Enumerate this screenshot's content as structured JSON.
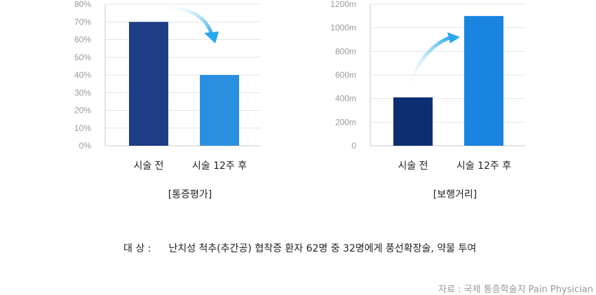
{
  "chart_data": [
    {
      "type": "bar",
      "title": "[통증평가]",
      "categories": [
        "시술 전",
        "시술 12주 후"
      ],
      "values": [
        70,
        40
      ],
      "yticks": [
        "0%",
        "10%",
        "20%",
        "30%",
        "40%",
        "50%",
        "60%",
        "70%",
        "80%"
      ],
      "ylim": [
        0,
        80
      ],
      "colors": [
        "#1f3d85",
        "#2b8fe0"
      ],
      "arrow": "down",
      "grid": true
    },
    {
      "type": "bar",
      "title": "[보행거리]",
      "categories": [
        "시술 전",
        "시술 12주 후"
      ],
      "values": [
        410,
        1100
      ],
      "yticks": [
        "0",
        "200m",
        "400m",
        "600m",
        "800m",
        "1000m",
        "1200m"
      ],
      "ylim": [
        0,
        1200
      ],
      "colors": [
        "#0c2f73",
        "#1985e0"
      ],
      "arrow": "up",
      "grid": true
    }
  ],
  "footnote": {
    "label": "대 상 :",
    "text": "난치성 척추(추간공) 협착증 환자 62명 중 32명에게 풍선확장술, 약물 투여"
  },
  "source": "자료 : 국제 통증학술지 Pain Physician",
  "arrow_color": "#29a8ee"
}
